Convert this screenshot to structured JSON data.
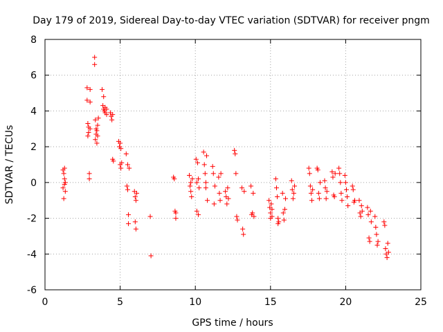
{
  "chart_data": {
    "type": "scatter",
    "title": "Day 179 of 2019, Sidereal Day-to-day VTEC variation (SDTVAR) for receiver pngm",
    "xlabel": "GPS time / hours",
    "ylabel": "SDTVAR / TECUs",
    "xlim": [
      0,
      25
    ],
    "ylim": [
      -6,
      8
    ],
    "xticks": [
      0,
      5,
      10,
      15,
      20,
      25
    ],
    "yticks": [
      -6,
      -4,
      -2,
      0,
      2,
      4,
      6,
      8
    ],
    "xtick_labels": [
      "0",
      "5",
      "10",
      "15",
      "20",
      "25"
    ],
    "ytick_labels": [
      "-6",
      "-4",
      "-2",
      "0",
      "2",
      "4",
      "6",
      "8"
    ],
    "grid": true,
    "marker": "+",
    "color": "#ff0000",
    "series": [
      {
        "name": "SDTVAR",
        "x": [
          1.2,
          1.2,
          1.25,
          1.25,
          1.3,
          1.3,
          1.3,
          1.35,
          1.35,
          2.8,
          2.8,
          2.85,
          2.85,
          2.9,
          2.9,
          2.95,
          2.95,
          3.0,
          3.0,
          3.0,
          3.3,
          3.3,
          3.35,
          3.35,
          3.4,
          3.4,
          3.45,
          3.45,
          3.5,
          3.5,
          3.55,
          3.8,
          3.85,
          3.9,
          3.9,
          3.95,
          4.0,
          4.0,
          4.1,
          4.1,
          4.35,
          4.4,
          4.45,
          4.5,
          4.5,
          4.55,
          4.9,
          4.95,
          5.0,
          5.0,
          5.05,
          5.05,
          5.1,
          5.4,
          5.45,
          5.5,
          5.5,
          5.55,
          5.55,
          5.6,
          5.95,
          6.0,
          6.0,
          6.05,
          6.05,
          6.1,
          7.0,
          7.05,
          8.55,
          8.6,
          8.65,
          8.7,
          8.7,
          9.6,
          9.65,
          9.7,
          9.7,
          9.75,
          9.8,
          10.05,
          10.1,
          10.1,
          10.15,
          10.2,
          10.2,
          10.25,
          10.55,
          10.6,
          10.65,
          10.7,
          10.7,
          10.75,
          10.8,
          11.15,
          11.2,
          11.25,
          11.3,
          11.55,
          11.6,
          11.65,
          11.7,
          12.0,
          12.05,
          12.1,
          12.15,
          12.2,
          12.6,
          12.65,
          12.7,
          12.75,
          12.8,
          13.1,
          13.15,
          13.2,
          13.25,
          13.7,
          13.75,
          13.8,
          13.85,
          13.9,
          14.9,
          14.95,
          15.0,
          15.0,
          15.05,
          15.1,
          15.1,
          15.35,
          15.4,
          15.45,
          15.5,
          15.5,
          15.55,
          15.8,
          15.85,
          15.9,
          15.95,
          16.0,
          16.4,
          16.45,
          16.5,
          16.55,
          16.6,
          17.55,
          17.6,
          17.65,
          17.7,
          17.75,
          17.8,
          18.1,
          18.15,
          18.2,
          18.25,
          18.3,
          18.6,
          18.65,
          18.7,
          18.75,
          19.1,
          19.15,
          19.2,
          19.25,
          19.3,
          19.55,
          19.6,
          19.65,
          19.7,
          19.75,
          19.95,
          20.0,
          20.05,
          20.1,
          20.15,
          20.45,
          20.5,
          20.55,
          20.6,
          20.9,
          20.95,
          21.0,
          21.05,
          21.1,
          21.45,
          21.5,
          21.55,
          21.6,
          21.65,
          21.7,
          21.95,
          22.0,
          22.05,
          22.1,
          22.15,
          22.55,
          22.6,
          22.65,
          22.7,
          22.75,
          22.8,
          22.85
        ],
        "y": [
          0.7,
          -0.3,
          0.5,
          -0.9,
          0.2,
          -0.1,
          0.8,
          -0.5,
          0.0,
          5.3,
          4.6,
          3.3,
          2.6,
          3.1,
          2.8,
          0.5,
          0.2,
          5.2,
          4.5,
          3.0,
          7.0,
          6.6,
          3.5,
          2.4,
          3.0,
          2.7,
          2.2,
          2.9,
          3.2,
          2.6,
          3.6,
          5.2,
          4.3,
          4.1,
          4.8,
          4.0,
          4.2,
          3.9,
          3.8,
          4.1,
          3.9,
          3.7,
          3.5,
          1.3,
          3.8,
          1.2,
          2.3,
          2.0,
          1.0,
          2.2,
          0.8,
          1.9,
          1.1,
          1.6,
          -0.2,
          -0.4,
          1.0,
          -1.8,
          -2.3,
          0.8,
          -0.5,
          -0.8,
          -2.2,
          -1.0,
          -2.6,
          -0.6,
          -1.9,
          -4.1,
          0.3,
          0.2,
          -1.6,
          -2.0,
          -1.7,
          0.4,
          -0.2,
          0.0,
          -0.5,
          -0.8,
          0.2,
          1.3,
          0.0,
          -1.6,
          1.1,
          0.2,
          -1.8,
          -0.3,
          1.7,
          1.0,
          0.5,
          -0.3,
          0.0,
          1.5,
          -1.0,
          0.9,
          0.5,
          -1.2,
          -0.2,
          0.3,
          -0.6,
          -1.0,
          0.5,
          -0.5,
          -0.8,
          -1.2,
          -0.3,
          -0.9,
          1.8,
          1.6,
          0.5,
          -1.9,
          -2.1,
          -0.3,
          -2.6,
          -2.9,
          -0.5,
          -0.2,
          -1.8,
          -1.7,
          -0.6,
          -1.9,
          -1.0,
          -1.4,
          -1.7,
          -2.0,
          -1.2,
          -1.9,
          -1.5,
          0.2,
          -0.3,
          -0.8,
          -2.0,
          -2.3,
          -2.2,
          -0.6,
          -1.7,
          -2.1,
          -1.5,
          -0.9,
          0.1,
          -0.4,
          -0.9,
          -0.6,
          -0.2,
          0.8,
          0.5,
          -0.2,
          -0.6,
          -1.0,
          -0.4,
          0.8,
          0.7,
          -0.6,
          -0.9,
          0.0,
          0.1,
          -0.3,
          -0.9,
          -0.5,
          0.6,
          0.3,
          -0.7,
          -0.8,
          0.5,
          0.8,
          0.5,
          0.0,
          -0.6,
          -1.0,
          0.4,
          0.0,
          -0.4,
          -0.8,
          -1.3,
          -0.2,
          -0.4,
          -1.1,
          -1.0,
          -1.0,
          -1.7,
          -1.9,
          -1.3,
          -1.6,
          -1.4,
          -1.8,
          -3.1,
          -3.3,
          -1.6,
          -2.2,
          -1.9,
          -2.5,
          -2.9,
          -3.5,
          -3.3,
          -2.2,
          -2.4,
          -3.7,
          -4.0,
          -4.2,
          -3.4,
          -3.9
        ]
      }
    ]
  }
}
